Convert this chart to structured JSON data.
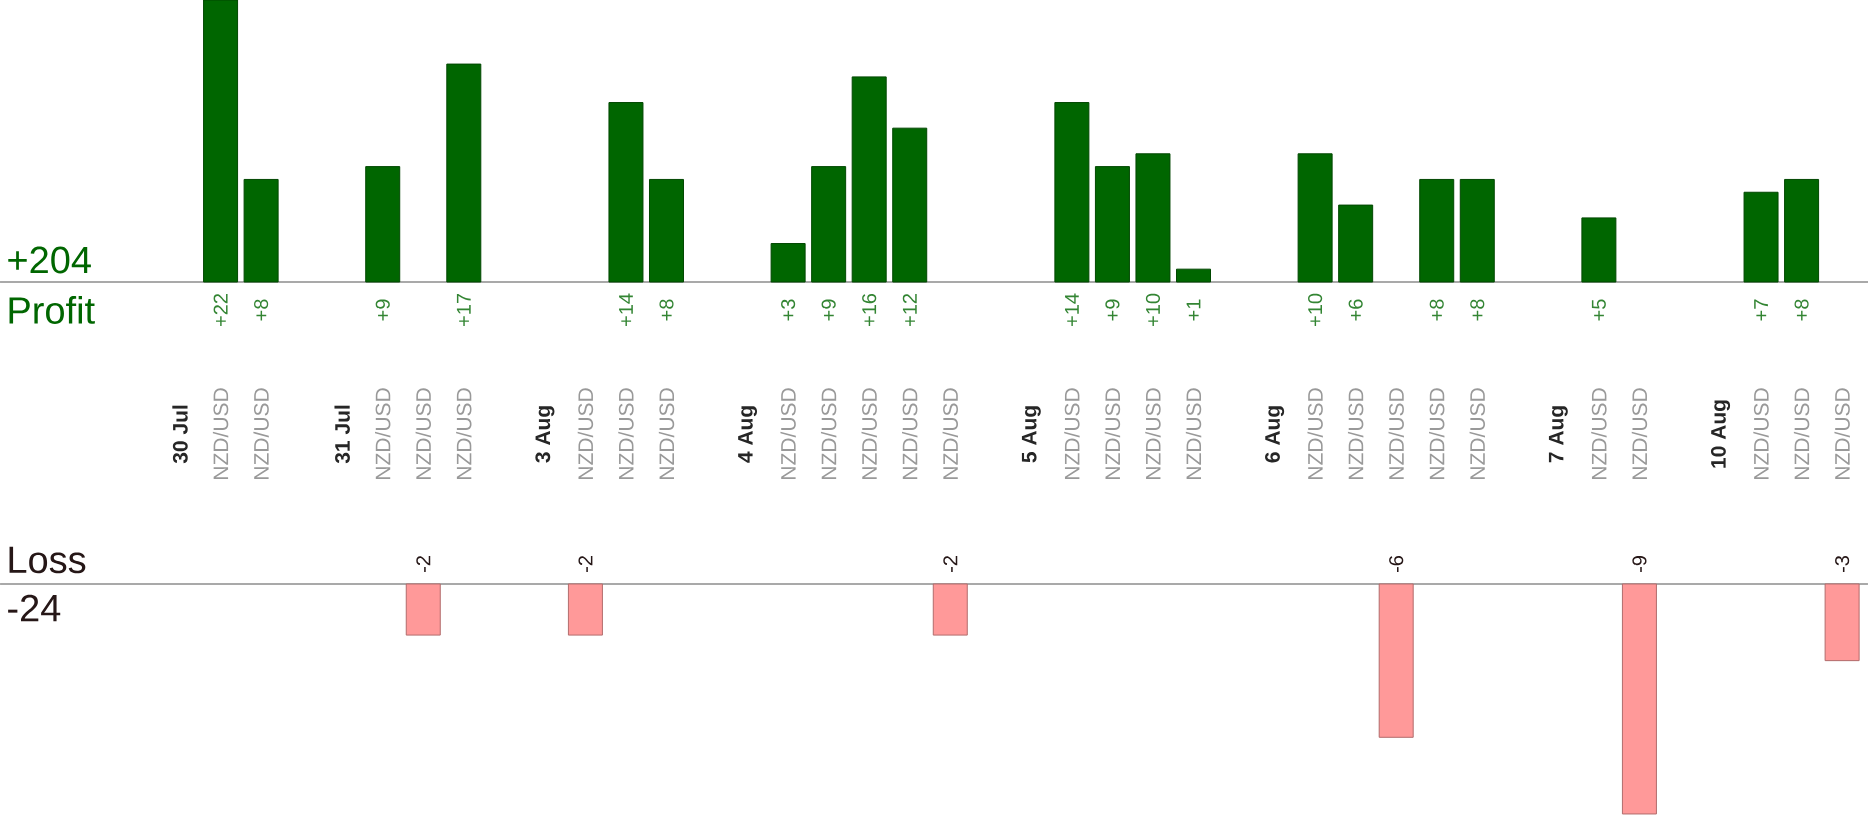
{
  "chart_data": [
    {
      "type": "bar",
      "categories": [
        "30 Jul",
        "NZD/USD",
        "NZD/USD",
        null,
        "31 Jul",
        "NZD/USD",
        "NZD/USD",
        "NZD/USD",
        null,
        "3 Aug",
        "NZD/USD",
        "NZD/USD",
        "NZD/USD",
        null,
        "4 Aug",
        "NZD/USD",
        "NZD/USD",
        "NZD/USD",
        "NZD/USD",
        "NZD/USD",
        null,
        "5 Aug",
        "NZD/USD",
        "NZD/USD",
        "NZD/USD",
        "NZD/USD",
        null,
        "6 Aug",
        "NZD/USD",
        "NZD/USD",
        "NZD/USD",
        "NZD/USD",
        "NZD/USD",
        null,
        "7 Aug",
        "NZD/USD",
        "NZD/USD",
        null,
        "10 Aug",
        "NZD/USD",
        "NZD/USD",
        "NZD/USD"
      ],
      "series": [
        {
          "name": "Profit",
          "color": "#006600",
          "values": [
            null,
            22,
            8,
            null,
            null,
            9,
            null,
            17,
            null,
            null,
            null,
            14,
            8,
            null,
            null,
            3,
            9,
            16,
            12,
            null,
            null,
            null,
            14,
            9,
            10,
            1,
            null,
            null,
            10,
            6,
            null,
            8,
            8,
            null,
            null,
            5,
            null,
            null,
            null,
            7,
            8,
            null
          ],
          "value_labels": [
            null,
            "+22",
            "+8",
            null,
            null,
            "+9",
            null,
            "+17",
            null,
            null,
            null,
            "+14",
            "+8",
            null,
            null,
            "+3",
            "+9",
            "+16",
            "+12",
            null,
            null,
            null,
            "+14",
            "+9",
            "+10",
            "+1",
            null,
            null,
            "+10",
            "+6",
            null,
            "+8",
            "+8",
            null,
            null,
            "+5",
            null,
            null,
            null,
            "+7",
            "+8",
            null
          ]
        }
      ],
      "ylim": [
        0,
        22
      ],
      "annotations": [
        "+204"
      ]
    },
    {
      "type": "bar",
      "categories": [
        null,
        null,
        null,
        null,
        null,
        null,
        null,
        null,
        null,
        null,
        null,
        null,
        null,
        null,
        null,
        null,
        null,
        null,
        null,
        null,
        null,
        null,
        null,
        null,
        null,
        null,
        null,
        null,
        null,
        null,
        null,
        null,
        null,
        null,
        null,
        null,
        null,
        null,
        null,
        null,
        null,
        null
      ],
      "series": [
        {
          "name": "Loss",
          "color": "#ff9999",
          "values": [
            null,
            null,
            null,
            null,
            null,
            null,
            -2,
            null,
            null,
            null,
            -2,
            null,
            null,
            null,
            null,
            null,
            null,
            null,
            null,
            -2,
            null,
            null,
            null,
            null,
            null,
            null,
            null,
            null,
            null,
            null,
            -6,
            null,
            null,
            null,
            null,
            null,
            -9,
            null,
            null,
            null,
            null,
            -3
          ],
          "value_labels": [
            null,
            null,
            null,
            null,
            null,
            null,
            "-2",
            null,
            null,
            null,
            "-2",
            null,
            null,
            null,
            null,
            null,
            null,
            null,
            null,
            "-2",
            null,
            null,
            null,
            null,
            null,
            null,
            null,
            null,
            null,
            null,
            "-6",
            null,
            null,
            null,
            null,
            null,
            "-9",
            null,
            null,
            null,
            null,
            "-3"
          ]
        }
      ],
      "ylim": [
        -9,
        0
      ],
      "annotations": [
        "-24"
      ]
    }
  ]
}
